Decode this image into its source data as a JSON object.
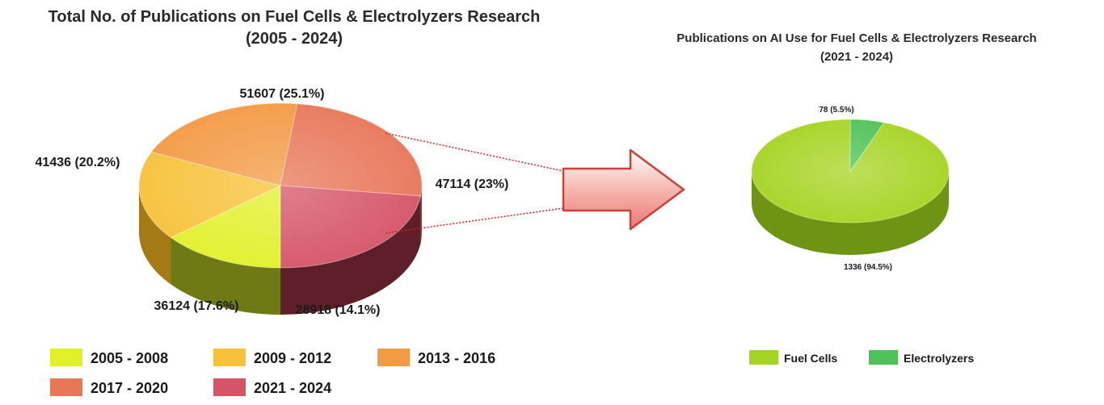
{
  "chart_data": [
    {
      "type": "pie",
      "title": "Total No. of Publications on Fuel Cells & Electrolyzers Research",
      "subtitle": "(2005 - 2024)",
      "categories": [
        "2005 - 2008",
        "2009 - 2012",
        "2013 - 2016",
        "2017 - 2020",
        "2021 - 2024"
      ],
      "values": [
        28918,
        36124,
        41436,
        51607,
        47114
      ],
      "data_labels": [
        "28918 (14.1%)",
        "36124 (17.6%)",
        "41436 (20.2%)",
        "51607 (25.1%)",
        "47114 (23%)"
      ],
      "colors": [
        "#e2f02c",
        "#f7c23a",
        "#f39a45",
        "#e8775a",
        "#d55468"
      ],
      "side_colors": [
        "#6f7a14",
        "#a37a16",
        "#b0631c",
        "#9c4432",
        "#5e1f2a"
      ],
      "legend_placement": "bottom"
    },
    {
      "type": "pie",
      "title": "Publications on AI Use for Fuel Cells & Electrolyzers Research",
      "subtitle": "(2021 - 2024)",
      "categories": [
        "Fuel Cells",
        "Electrolyzers"
      ],
      "values": [
        1336,
        78
      ],
      "data_labels": [
        "1336 (94.5%)",
        "78 (5.5%)"
      ],
      "colors": [
        "#a6d424",
        "#4fc257"
      ],
      "side_colors": [
        "#6f9414",
        "#2f8a3a"
      ],
      "legend_placement": "bottom"
    }
  ]
}
